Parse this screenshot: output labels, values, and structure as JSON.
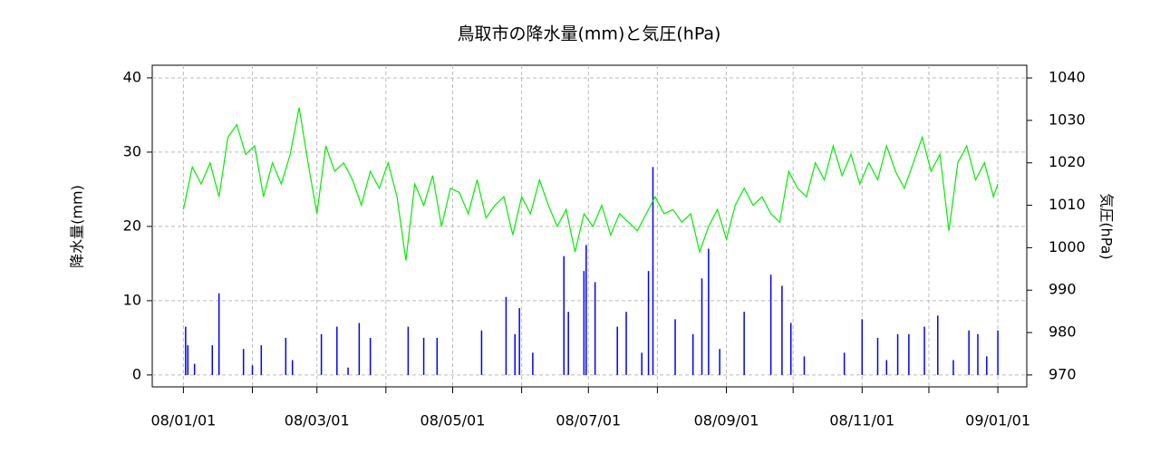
{
  "chart_data": {
    "type": "bar-line",
    "title": "鳥取市の降水量(mm)と気圧(hPa)",
    "ylabel": "降水量(mm)",
    "y2label": "気圧(hPa)",
    "xlim": [
      "07/12/18",
      "09/01/14"
    ],
    "xticks": [
      "08/01/01",
      "08/03/01",
      "08/05/01",
      "08/07/01",
      "08/09/01",
      "08/11/01",
      "09/01/01"
    ],
    "xminorticks": [
      "08/02/01",
      "08/04/01",
      "08/06/01",
      "08/08/01",
      "08/10/01",
      "08/12/01"
    ],
    "ylim": [
      -1.6,
      41.7
    ],
    "yticks": [
      0,
      10,
      20,
      30,
      40
    ],
    "y2lim": [
      967.2,
      1043
    ],
    "y2ticks": [
      970,
      980,
      990,
      1000,
      1010,
      1020,
      1030,
      1040
    ],
    "grid": true,
    "series": [
      {
        "type": "bar",
        "color": "#0000ff",
        "x": [
          "08/01/02",
          "08/01/03",
          "08/01/06",
          "08/01/14",
          "08/01/17",
          "08/01/28",
          "08/02/01",
          "08/02/05",
          "08/02/16",
          "08/02/19",
          "08/03/03",
          "08/03/10",
          "08/03/15",
          "08/03/20",
          "08/03/25",
          "08/04/11",
          "08/04/18",
          "08/04/24",
          "08/05/14",
          "08/05/25",
          "08/05/29",
          "08/05/31",
          "08/06/06",
          "08/06/20",
          "08/06/22",
          "08/06/29",
          "08/06/30",
          "08/07/04",
          "08/07/14",
          "08/07/18",
          "08/07/25",
          "08/07/28",
          "08/07/30",
          "08/08/09",
          "08/08/17",
          "08/08/21",
          "08/08/24",
          "08/08/29",
          "08/09/09",
          "08/09/21",
          "08/09/26",
          "08/09/30",
          "08/10/06",
          "08/10/24",
          "08/11/01",
          "08/11/08",
          "08/11/12",
          "08/11/17",
          "08/11/22",
          "08/11/29",
          "08/12/05",
          "08/12/12",
          "08/12/19",
          "08/12/23",
          "08/12/27",
          "09/01/01"
        ],
        "values": [
          6.5,
          4,
          1.5,
          4,
          11,
          3.5,
          1.3,
          4,
          5,
          2,
          5.5,
          6.5,
          1,
          7,
          5,
          6.5,
          5,
          5,
          6,
          10.5,
          5.5,
          9,
          3,
          16,
          8.5,
          14,
          17.5,
          12.5,
          6.5,
          8.5,
          3,
          14,
          28,
          7.5,
          5.5,
          13,
          17,
          3.5,
          8.5,
          13.5,
          12,
          7,
          2.5,
          3,
          7.5,
          5,
          2,
          5.5,
          5.5,
          6.5,
          8,
          2,
          6,
          5.5,
          2.5,
          6
        ]
      },
      {
        "type": "line",
        "axis": "y2",
        "color": "#00ee00",
        "x": [
          "08/01/01",
          "08/01/05",
          "08/01/09",
          "08/01/13",
          "08/01/17",
          "08/01/21",
          "08/01/25",
          "08/01/29",
          "08/02/02",
          "08/02/06",
          "08/02/10",
          "08/02/14",
          "08/02/18",
          "08/02/22",
          "08/02/26",
          "08/03/01",
          "08/03/05",
          "08/03/09",
          "08/03/13",
          "08/03/17",
          "08/03/21",
          "08/03/25",
          "08/03/29",
          "08/04/02",
          "08/04/06",
          "08/04/10",
          "08/04/14",
          "08/04/18",
          "08/04/22",
          "08/04/26",
          "08/04/30",
          "08/05/04",
          "08/05/08",
          "08/05/12",
          "08/05/16",
          "08/05/20",
          "08/05/24",
          "08/05/28",
          "08/06/01",
          "08/06/05",
          "08/06/09",
          "08/06/13",
          "08/06/17",
          "08/06/21",
          "08/06/25",
          "08/06/29",
          "08/07/03",
          "08/07/07",
          "08/07/11",
          "08/07/15",
          "08/07/19",
          "08/07/23",
          "08/07/27",
          "08/07/31",
          "08/08/04",
          "08/08/08",
          "08/08/12",
          "08/08/16",
          "08/08/20",
          "08/08/24",
          "08/08/28",
          "08/09/01",
          "08/09/05",
          "08/09/09",
          "08/09/13",
          "08/09/17",
          "08/09/21",
          "08/09/25",
          "08/09/29",
          "08/10/03",
          "08/10/07",
          "08/10/11",
          "08/10/15",
          "08/10/19",
          "08/10/23",
          "08/10/27",
          "08/10/31",
          "08/11/04",
          "08/11/08",
          "08/11/12",
          "08/11/16",
          "08/11/20",
          "08/11/24",
          "08/11/28",
          "08/12/02",
          "08/12/06",
          "08/12/10",
          "08/12/14",
          "08/12/18",
          "08/12/22",
          "08/12/26",
          "08/12/30",
          "09/01/01"
        ],
        "values": [
          1009,
          1019,
          1015,
          1020,
          1012,
          1026,
          1029,
          1022,
          1024,
          1012,
          1020,
          1015,
          1022,
          1033,
          1020,
          1008,
          1024,
          1018,
          1020,
          1016,
          1010,
          1018,
          1014,
          1020,
          1012,
          997,
          1015,
          1010,
          1017,
          1005,
          1014,
          1013,
          1008,
          1016,
          1007,
          1010,
          1012,
          1003,
          1012,
          1008,
          1016,
          1010,
          1005,
          1009,
          999,
          1008,
          1005,
          1010,
          1003,
          1008,
          1006,
          1004,
          1008,
          1012,
          1008,
          1009,
          1006,
          1008,
          999,
          1005,
          1009,
          1002,
          1010,
          1014,
          1010,
          1012,
          1008,
          1006,
          1018,
          1014,
          1012,
          1020,
          1016,
          1024,
          1017,
          1022,
          1015,
          1020,
          1016,
          1024,
          1018,
          1014,
          1020,
          1026,
          1018,
          1022,
          1004,
          1020,
          1024,
          1016,
          1020,
          1012,
          1015
        ]
      }
    ]
  }
}
